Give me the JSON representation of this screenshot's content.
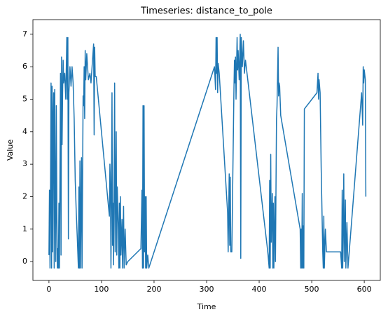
{
  "chart_data": {
    "type": "line",
    "title": "Timeseries: distance_to_pole",
    "x_label": "Time",
    "y_label": "Value",
    "x": [
      0,
      1,
      2,
      3,
      4,
      5,
      6,
      7,
      8,
      9,
      10,
      11,
      12,
      13,
      14,
      15,
      16,
      17,
      18,
      19,
      20,
      22,
      23,
      24,
      25,
      26,
      27,
      28,
      30,
      32,
      34,
      35,
      36,
      37,
      38,
      40,
      42,
      44,
      46,
      48,
      50,
      52,
      54,
      56,
      57,
      58,
      59,
      60,
      62,
      63,
      65,
      66,
      67,
      68,
      69,
      70,
      72,
      75,
      78,
      80,
      85,
      86,
      87,
      88,
      90,
      115,
      116,
      117,
      118,
      119,
      120,
      121,
      122,
      123,
      125,
      126,
      128,
      129,
      130,
      132,
      133,
      134,
      135,
      136,
      137,
      139,
      140,
      142,
      143,
      145,
      147,
      150,
      175,
      177,
      178,
      179,
      180,
      181,
      182,
      183,
      184,
      185,
      186,
      188,
      190,
      315,
      317,
      318,
      319,
      320,
      321,
      322,
      324,
      340,
      341,
      343,
      344,
      345,
      346,
      348,
      352,
      353,
      354,
      355,
      356,
      358,
      359,
      360,
      362,
      364,
      365,
      366,
      368,
      370,
      372,
      374,
      415,
      417,
      419,
      420,
      421,
      422,
      423,
      425,
      426,
      427,
      428,
      430,
      431,
      433,
      434,
      436,
      437,
      438,
      439,
      441,
      478,
      479,
      480,
      481,
      482,
      483,
      484,
      485,
      486,
      510,
      512,
      513,
      514,
      516,
      518,
      521,
      522,
      523,
      524,
      526,
      528,
      555,
      557,
      558,
      559,
      561,
      562,
      564,
      565,
      567,
      569,
      595,
      597,
      598,
      599,
      600,
      602,
      603
    ],
    "series": [
      {
        "name": "distance_to_pole",
        "color": "#1f77b4",
        "values": [
          0.2,
          2.2,
          -0.2,
          2.3,
          5.5,
          -0.2,
          5.4,
          0.3,
          4.5,
          5.2,
          -0.2,
          5.3,
          1.8,
          0,
          4.8,
          1.7,
          -0.2,
          0.4,
          -0.2,
          1.8,
          -0.2,
          5.8,
          0.2,
          6.3,
          3.6,
          5.2,
          6.2,
          5.5,
          5.8,
          5,
          6.9,
          5,
          6.9,
          0.7,
          5.2,
          6,
          5.4,
          6,
          5.5,
          4.4,
          2.5,
          1.5,
          0.7,
          -0.2,
          2.3,
          -0.2,
          3.1,
          -0.2,
          3.2,
          -0.2,
          5.1,
          4.8,
          6,
          4.4,
          6.5,
          5.6,
          6.4,
          5.6,
          5.8,
          5.5,
          6.7,
          3.9,
          6.6,
          5.7,
          5.7,
          1.4,
          3,
          2.4,
          -0.2,
          2.3,
          5.2,
          0.5,
          1.8,
          -0.1,
          5.5,
          0.3,
          4,
          0.2,
          2.3,
          1,
          -0.2,
          1.8,
          -0.2,
          2,
          0.2,
          1.3,
          -0.2,
          1.7,
          -0.2,
          1,
          -0.1,
          0,
          0.4,
          2.2,
          -0.2,
          4.8,
          -0.2,
          4.8,
          0.3,
          2,
          -0.2,
          2,
          -0.2,
          0.2,
          -0.2,
          6,
          5.3,
          6.9,
          5.8,
          6.9,
          5.2,
          6.1,
          5.8,
          1.5,
          0.3,
          2.7,
          0.5,
          2.6,
          0.3,
          0.3,
          5.3,
          6.2,
          5.5,
          6.3,
          5,
          6.9,
          5.9,
          6.5,
          5.6,
          7,
          0.1,
          6.9,
          6,
          6.8,
          5.8,
          6.2,
          0.5,
          0.2,
          -0.2,
          2.5,
          -0.2,
          3.3,
          0.6,
          2.1,
          -0.2,
          1.8,
          -0.2,
          2,
          0,
          4.4,
          4.8,
          6.6,
          5.1,
          5.5,
          5.4,
          4.5,
          1,
          -0.2,
          1,
          -0.2,
          2.1,
          -0.2,
          1.1,
          -0.2,
          4.7,
          5.2,
          5.8,
          5,
          5.6,
          5.2,
          2.9,
          0.3,
          -0.2,
          1.4,
          -0.2,
          1,
          0.3,
          0.3,
          -0.2,
          2.2,
          -0.2,
          2.7,
          0,
          1.9,
          -0.2,
          1.2,
          -0.2,
          5.2,
          4.2,
          6,
          5.5,
          5.9,
          5.6,
          2
        ]
      }
    ],
    "xlim": [
      -30.5,
      630.5
    ],
    "ylim": [
      -0.58,
      7.45
    ],
    "xticks": [
      0,
      100,
      200,
      300,
      400,
      500,
      600
    ],
    "yticks": [
      0,
      1,
      2,
      3,
      4,
      5,
      6,
      7
    ],
    "grid": false
  }
}
